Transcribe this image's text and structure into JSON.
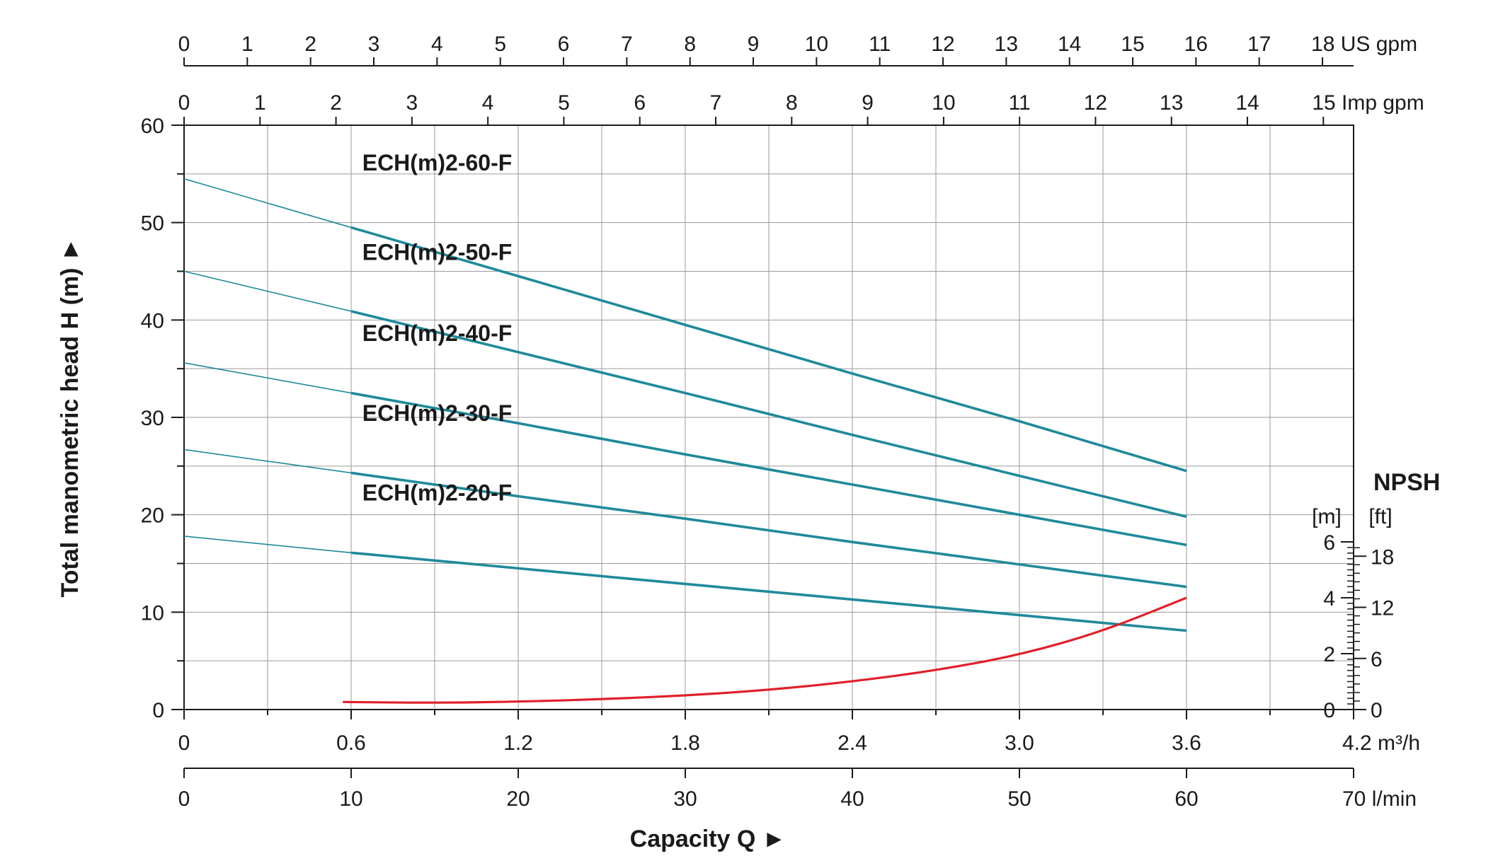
{
  "chart_data": {
    "type": "line",
    "title": "",
    "xlabel": "Capacity Q",
    "xlabel_arrow": "►",
    "ylabel": "Total manometric head H (m)",
    "ylabel_arrow": "►",
    "x_unit": "m³/h",
    "xlim": [
      0,
      4.2
    ],
    "ylim": [
      0,
      60
    ],
    "grid": true,
    "legend": "none (series names printed beside curves)",
    "x_ticks": [
      "0",
      "0.6",
      "1.2",
      "1.8",
      "2.4",
      "3.0",
      "3.6",
      "4.2 m³/h"
    ],
    "y_ticks": [
      "0",
      "10",
      "20",
      "30",
      "40",
      "50",
      "60"
    ],
    "secondary_axes": {
      "us_gpm": {
        "unit": "US gpm",
        "max": 18,
        "ticks": [
          "0",
          "1",
          "2",
          "3",
          "4",
          "5",
          "6",
          "7",
          "8",
          "9",
          "10",
          "11",
          "12",
          "13",
          "14",
          "15",
          "16",
          "17",
          "18 US gpm"
        ]
      },
      "imp_gpm": {
        "unit": "Imp gpm",
        "max": 15,
        "ticks": [
          "0",
          "1",
          "2",
          "3",
          "4",
          "5",
          "6",
          "7",
          "8",
          "9",
          "10",
          "11",
          "12",
          "13",
          "14",
          "15 Imp gpm"
        ]
      },
      "lmin": {
        "unit": "l/min",
        "max": 70,
        "ticks": [
          "0",
          "10",
          "20",
          "30",
          "40",
          "50",
          "60",
          "70  l/min"
        ]
      }
    },
    "npsh_axis": {
      "title": "NPSH",
      "unit_m": "[m]",
      "unit_ft": "[ft]",
      "m_ticks": [
        "0",
        "2",
        "4",
        "6"
      ],
      "ft_ticks": [
        "0",
        "6",
        "12",
        "18"
      ]
    },
    "series": [
      {
        "name": "ECH(m)2-60-F",
        "color": "#1f8a9a",
        "x": [
          0,
          0.6,
          1.2,
          1.8,
          2.4,
          3.0,
          3.6
        ],
        "y": [
          54.5,
          49.5,
          44.5,
          39.5,
          34.5,
          29.6,
          24.5
        ]
      },
      {
        "name": "ECH(m)2-50-F",
        "color": "#1f8a9a",
        "x": [
          0,
          0.6,
          1.2,
          1.8,
          2.4,
          3.0,
          3.6
        ],
        "y": [
          45.0,
          40.9,
          36.7,
          32.5,
          28.2,
          24.0,
          19.8
        ]
      },
      {
        "name": "ECH(m)2-40-F",
        "color": "#1f8a9a",
        "x": [
          0,
          0.6,
          1.2,
          1.8,
          2.4,
          3.0,
          3.6
        ],
        "y": [
          35.6,
          32.5,
          29.4,
          26.2,
          23.1,
          20.0,
          16.9
        ]
      },
      {
        "name": "ECH(m)2-30-F",
        "color": "#1f8a9a",
        "x": [
          0,
          0.6,
          1.2,
          1.8,
          2.4,
          3.0,
          3.6
        ],
        "y": [
          26.7,
          24.3,
          21.9,
          19.6,
          17.2,
          14.9,
          12.6
        ]
      },
      {
        "name": "ECH(m)2-20-F",
        "color": "#1f8a9a",
        "x": [
          0,
          0.6,
          1.2,
          1.8,
          2.4,
          3.0,
          3.6
        ],
        "y": [
          17.8,
          16.1,
          14.5,
          12.9,
          11.3,
          9.7,
          8.1
        ]
      }
    ],
    "npsh_curve": {
      "color": "#e0202a",
      "x_m3h": [
        0.57,
        0.9,
        1.2,
        1.5,
        1.8,
        2.1,
        2.4,
        2.7,
        3.0,
        3.3,
        3.6
      ],
      "npsh_m": [
        0.27,
        0.24,
        0.28,
        0.37,
        0.5,
        0.7,
        1.0,
        1.4,
        1.95,
        2.8,
        4.0
      ]
    }
  }
}
